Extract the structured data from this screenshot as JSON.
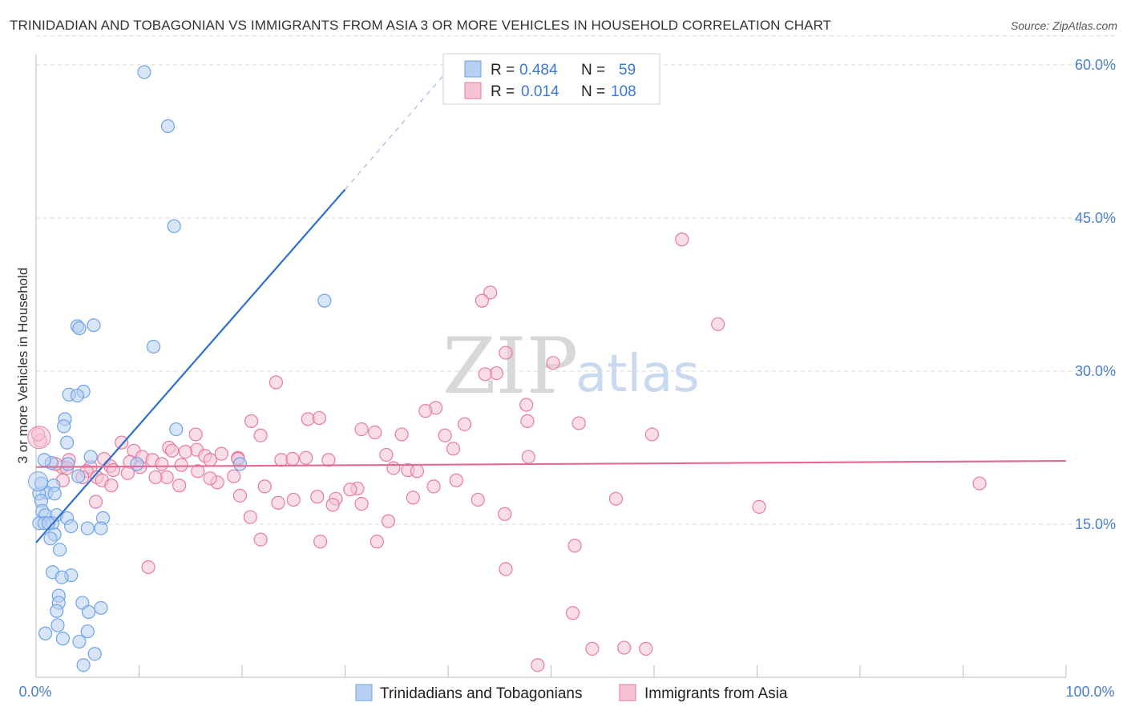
{
  "title": "TRINIDADIAN AND TOBAGONIAN VS IMMIGRANTS FROM ASIA 3 OR MORE VEHICLES IN HOUSEHOLD CORRELATION CHART",
  "source": "Source: ZipAtlas.com",
  "watermark": {
    "zip": "ZIP",
    "atlas": "atlas"
  },
  "colors": {
    "blue": "#6fa3e8",
    "blue_fill": "#b7cff0",
    "blue_line": "#2f6fd0",
    "pink": "#e87aa0",
    "pink_fill": "#f5c3d4",
    "pink_line": "#e06b95",
    "tick": "#4a7fd0",
    "grid": "#d9d9d9"
  },
  "legend": {
    "r_label": "R =",
    "n_label": "N =",
    "entries": [
      {
        "r": "0.484",
        "n": "59"
      },
      {
        "r": "0.014",
        "n": "108"
      }
    ]
  },
  "chart_data": {
    "type": "scatter",
    "title": "TRINIDADIAN AND TOBAGONIAN VS IMMIGRANTS FROM ASIA 3 OR MORE VEHICLES IN HOUSEHOLD CORRELATION CHART",
    "xlabel": "",
    "ylabel": "3 or more Vehicles in Household",
    "xlim": [
      0,
      100
    ],
    "ylim": [
      0,
      63
    ],
    "x_tick_labels": [
      "0.0%",
      "100.0%"
    ],
    "y_ticks": [
      15,
      30,
      45,
      60
    ],
    "y_tick_labels": [
      "15.0%",
      "30.0%",
      "45.0%",
      "60.0%"
    ],
    "grid": true,
    "series": [
      {
        "name": "Trinidadians and Tobagonians",
        "color": "blue",
        "r": 0.484,
        "n": 59,
        "trend": {
          "x": [
            0,
            30
          ],
          "y": [
            13.2,
            47.8
          ],
          "dashed_to": [
            40,
            59.5
          ]
        },
        "points": [
          [
            10.5,
            59.3
          ],
          [
            12.8,
            54.0
          ],
          [
            13.4,
            44.2
          ],
          [
            28.0,
            36.9
          ],
          [
            4.0,
            34.4
          ],
          [
            5.6,
            34.5
          ],
          [
            4.2,
            34.2
          ],
          [
            11.4,
            32.4
          ],
          [
            4.6,
            28.0
          ],
          [
            3.2,
            27.7
          ],
          [
            4.0,
            27.6
          ],
          [
            2.8,
            25.3
          ],
          [
            2.7,
            24.6
          ],
          [
            13.6,
            24.3
          ],
          [
            3.0,
            23.0
          ],
          [
            5.3,
            21.6
          ],
          [
            1.5,
            21.0
          ],
          [
            3.1,
            20.9
          ],
          [
            9.8,
            20.9
          ],
          [
            19.8,
            20.9
          ],
          [
            4.1,
            19.7
          ],
          [
            1.7,
            18.8
          ],
          [
            1.0,
            18.1
          ],
          [
            1.8,
            18.0
          ],
          [
            0.3,
            18.0
          ],
          [
            0.5,
            17.3
          ],
          [
            0.6,
            16.3
          ],
          [
            0.9,
            15.9
          ],
          [
            2.0,
            15.9
          ],
          [
            3.0,
            15.6
          ],
          [
            6.5,
            15.6
          ],
          [
            1.6,
            15.1
          ],
          [
            0.3,
            15.1
          ],
          [
            0.8,
            15.1
          ],
          [
            1.2,
            15.1
          ],
          [
            3.4,
            14.8
          ],
          [
            5.0,
            14.6
          ],
          [
            6.3,
            14.6
          ],
          [
            1.8,
            14.0
          ],
          [
            1.4,
            13.6
          ],
          [
            2.3,
            12.5
          ],
          [
            1.6,
            10.3
          ],
          [
            3.4,
            10.0
          ],
          [
            2.5,
            9.8
          ],
          [
            2.2,
            8.0
          ],
          [
            2.2,
            7.3
          ],
          [
            4.5,
            7.3
          ],
          [
            6.3,
            6.8
          ],
          [
            2.0,
            6.5
          ],
          [
            5.1,
            6.4
          ],
          [
            2.1,
            5.1
          ],
          [
            0.9,
            4.3
          ],
          [
            5.0,
            4.5
          ],
          [
            2.6,
            3.8
          ],
          [
            4.2,
            3.5
          ],
          [
            5.7,
            2.3
          ],
          [
            4.6,
            1.2
          ],
          [
            0.5,
            19.0
          ],
          [
            0.8,
            21.3
          ]
        ]
      },
      {
        "name": "Immigrants from Asia",
        "color": "pink",
        "r": 0.014,
        "n": 108,
        "trend": {
          "x": [
            0,
            100
          ],
          "y": [
            20.6,
            21.2
          ]
        },
        "points": [
          [
            62.7,
            42.9
          ],
          [
            44.1,
            37.7
          ],
          [
            43.3,
            36.9
          ],
          [
            66.2,
            34.6
          ],
          [
            45.6,
            31.8
          ],
          [
            50.2,
            30.8
          ],
          [
            44.7,
            29.8
          ],
          [
            43.6,
            29.7
          ],
          [
            23.3,
            28.9
          ],
          [
            47.6,
            26.7
          ],
          [
            38.8,
            26.4
          ],
          [
            37.8,
            26.1
          ],
          [
            26.4,
            25.3
          ],
          [
            27.5,
            25.4
          ],
          [
            20.9,
            25.1
          ],
          [
            41.6,
            24.8
          ],
          [
            52.7,
            24.9
          ],
          [
            47.7,
            25.1
          ],
          [
            32.9,
            24.0
          ],
          [
            21.8,
            23.7
          ],
          [
            31.6,
            24.3
          ],
          [
            35.5,
            23.8
          ],
          [
            39.7,
            23.7
          ],
          [
            59.8,
            23.8
          ],
          [
            15.5,
            23.8
          ],
          [
            12.9,
            22.5
          ],
          [
            15.6,
            22.3
          ],
          [
            14.5,
            22.1
          ],
          [
            40.5,
            22.4
          ],
          [
            13.2,
            22.2
          ],
          [
            18.0,
            21.9
          ],
          [
            16.4,
            21.7
          ],
          [
            9.5,
            22.2
          ],
          [
            19.6,
            21.5
          ],
          [
            47.8,
            21.6
          ],
          [
            23.8,
            21.3
          ],
          [
            28.4,
            21.3
          ],
          [
            16.9,
            21.3
          ],
          [
            10.3,
            21.6
          ],
          [
            34.0,
            21.8
          ],
          [
            6.6,
            21.4
          ],
          [
            9.1,
            21.1
          ],
          [
            3.2,
            21.3
          ],
          [
            2.5,
            20.6
          ],
          [
            5.3,
            20.6
          ],
          [
            7.2,
            20.7
          ],
          [
            10.1,
            20.6
          ],
          [
            4.9,
            20.2
          ],
          [
            36.1,
            20.3
          ],
          [
            34.7,
            20.5
          ],
          [
            37.0,
            20.2
          ],
          [
            15.7,
            20.2
          ],
          [
            12.7,
            19.6
          ],
          [
            19.2,
            19.7
          ],
          [
            11.6,
            19.6
          ],
          [
            4.5,
            19.6
          ],
          [
            5.9,
            19.6
          ],
          [
            6.4,
            19.3
          ],
          [
            2.6,
            19.3
          ],
          [
            7.3,
            18.8
          ],
          [
            13.9,
            18.8
          ],
          [
            31.2,
            18.5
          ],
          [
            22.2,
            18.7
          ],
          [
            38.6,
            18.7
          ],
          [
            40.8,
            19.3
          ],
          [
            30.5,
            18.4
          ],
          [
            19.8,
            17.8
          ],
          [
            27.3,
            17.7
          ],
          [
            25.0,
            17.4
          ],
          [
            29.1,
            17.5
          ],
          [
            31.6,
            17.0
          ],
          [
            36.6,
            17.6
          ],
          [
            23.5,
            17.1
          ],
          [
            42.9,
            17.4
          ],
          [
            28.8,
            16.9
          ],
          [
            56.3,
            17.5
          ],
          [
            5.8,
            17.2
          ],
          [
            70.2,
            16.7
          ],
          [
            91.6,
            19.0
          ],
          [
            45.5,
            16.0
          ],
          [
            20.8,
            15.7
          ],
          [
            34.2,
            15.3
          ],
          [
            21.8,
            13.5
          ],
          [
            27.6,
            13.3
          ],
          [
            33.1,
            13.3
          ],
          [
            52.3,
            12.9
          ],
          [
            10.9,
            10.8
          ],
          [
            45.6,
            10.6
          ],
          [
            52.1,
            6.3
          ],
          [
            54.0,
            2.8
          ],
          [
            57.1,
            2.9
          ],
          [
            59.2,
            2.8
          ],
          [
            48.7,
            1.2
          ],
          [
            19.6,
            21.4
          ],
          [
            17.6,
            19.1
          ],
          [
            8.9,
            20.0
          ],
          [
            14.1,
            20.8
          ],
          [
            11.3,
            21.3
          ],
          [
            7.5,
            20.3
          ],
          [
            3.0,
            20.5
          ],
          [
            1.9,
            20.9
          ],
          [
            24.9,
            21.4
          ],
          [
            26.2,
            21.5
          ],
          [
            12.2,
            20.9
          ],
          [
            0.4,
            23.2
          ],
          [
            0.2,
            23.8
          ],
          [
            16.9,
            19.5
          ],
          [
            8.3,
            23.0
          ]
        ]
      }
    ]
  },
  "bottom_legend": [
    {
      "label": "Trinidadians and Tobagonians"
    },
    {
      "label": "Immigrants from Asia"
    }
  ]
}
